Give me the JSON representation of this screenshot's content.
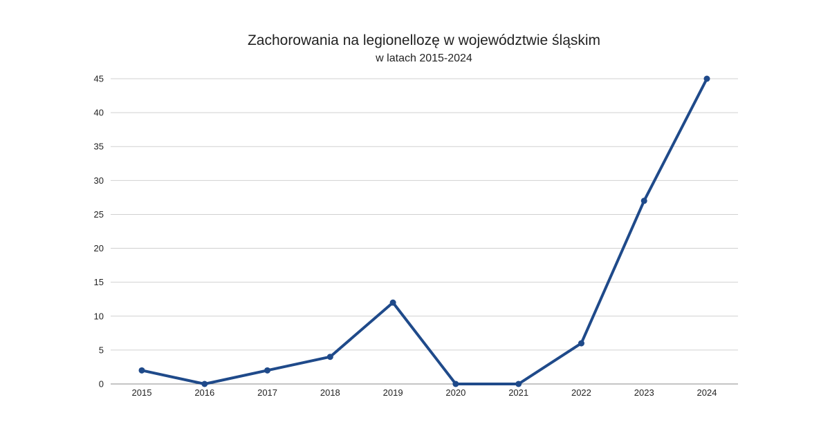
{
  "chart_data": {
    "type": "line",
    "title": "Zachorowania na legionellozę w województwie śląskim",
    "subtitle": "w latach 2015-2024",
    "categories": [
      "2015",
      "2016",
      "2017",
      "2018",
      "2019",
      "2020",
      "2021",
      "2022",
      "2023",
      "2024"
    ],
    "series": [
      {
        "values": [
          2,
          0,
          2,
          4,
          12,
          0,
          0,
          6,
          27,
          45
        ],
        "color": "#1f4a8a"
      }
    ],
    "ylim": [
      0,
      45
    ],
    "yticks": [
      "0",
      "5",
      "10",
      "15",
      "20",
      "25",
      "30",
      "35",
      "40",
      "45"
    ],
    "grid": true,
    "gridColor": "#d0d0d0",
    "axisColor": "#888888"
  }
}
